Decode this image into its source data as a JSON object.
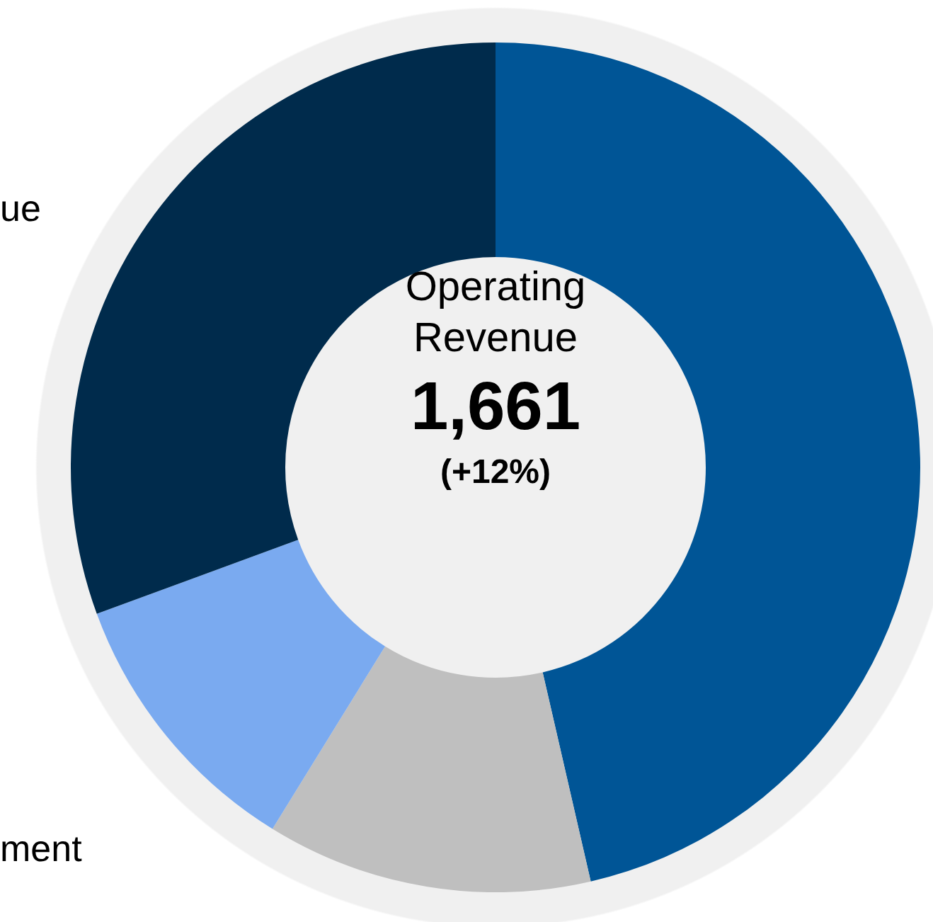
{
  "chart_data": {
    "type": "donut",
    "title": "Operating Revenue",
    "annotations": [
      "1,661",
      "(+12%)"
    ],
    "categories": [
      null,
      null,
      "ment",
      "ue"
    ],
    "values": [
      46.4,
      12.4,
      10.6,
      30.6
    ],
    "colors": [
      "#005596",
      "#bfbfbf",
      "#7aaaf0",
      "#002b4c"
    ]
  }
}
